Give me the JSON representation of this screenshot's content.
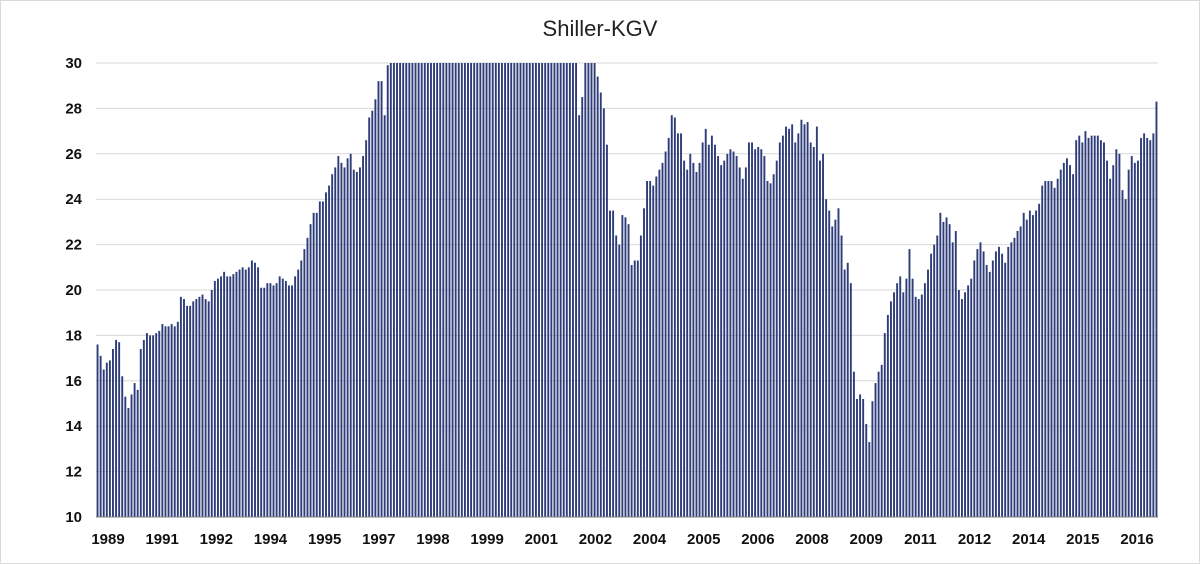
{
  "chart_data": {
    "type": "bar",
    "title": "Shiller-KGV",
    "xlabel": "",
    "ylabel": "",
    "ylim": [
      10,
      30
    ],
    "yticks": [
      "10",
      "12",
      "14",
      "16",
      "18",
      "20",
      "22",
      "24",
      "26",
      "28",
      "30"
    ],
    "xtick_labels": [
      "1989",
      "1991",
      "1992",
      "1994",
      "1995",
      "1997",
      "1998",
      "1999",
      "2001",
      "2002",
      "2004",
      "2005",
      "2006",
      "2008",
      "2009",
      "2011",
      "2012",
      "2014",
      "2015",
      "2016"
    ],
    "grid": true,
    "legend": "none",
    "bar_color": "#2e3d7a",
    "x_start": "1989-01",
    "x_end": "2016-03",
    "values": [
      17.6,
      17.1,
      16.5,
      16.8,
      16.9,
      17.4,
      17.8,
      17.7,
      16.2,
      15.3,
      14.8,
      15.4,
      15.9,
      15.6,
      17.4,
      17.8,
      18.1,
      18.0,
      18.0,
      18.1,
      18.2,
      18.5,
      18.4,
      18.4,
      18.5,
      18.4,
      18.6,
      19.7,
      19.6,
      19.3,
      19.3,
      19.5,
      19.6,
      19.7,
      19.8,
      19.6,
      19.5,
      20.0,
      20.4,
      20.5,
      20.6,
      20.8,
      20.6,
      20.6,
      20.7,
      20.8,
      20.9,
      21.0,
      20.9,
      21.0,
      21.3,
      21.2,
      21.0,
      20.1,
      20.1,
      20.3,
      20.3,
      20.2,
      20.3,
      20.6,
      20.5,
      20.4,
      20.2,
      20.2,
      20.6,
      20.9,
      21.3,
      21.8,
      22.3,
      22.9,
      23.4,
      23.4,
      23.9,
      23.9,
      24.3,
      24.6,
      25.1,
      25.4,
      25.9,
      25.6,
      25.4,
      25.8,
      26.0,
      25.3,
      25.2,
      25.4,
      25.9,
      26.6,
      27.6,
      27.9,
      28.4,
      29.2,
      29.2,
      27.7,
      29.9,
      30.0,
      30.0,
      30.0,
      30.0,
      30.0,
      30.0,
      30.0,
      30.0,
      30.0,
      30.0,
      30.0,
      30.0,
      30.0,
      30.0,
      30.0,
      30.0,
      30.0,
      30.0,
      30.0,
      30.0,
      30.0,
      30.0,
      30.0,
      30.0,
      30.0,
      30.0,
      30.0,
      30.0,
      30.0,
      30.0,
      30.0,
      30.0,
      30.0,
      30.0,
      30.0,
      30.0,
      30.0,
      30.0,
      30.0,
      30.0,
      30.0,
      30.0,
      30.0,
      30.0,
      30.0,
      30.0,
      30.0,
      30.0,
      30.0,
      30.0,
      30.0,
      30.0,
      30.0,
      30.0,
      30.0,
      30.0,
      30.0,
      30.0,
      30.0,
      30.0,
      30.0,
      27.7,
      28.5,
      30.0,
      30.0,
      30.0,
      30.0,
      29.4,
      28.7,
      28.0,
      26.4,
      23.5,
      23.5,
      22.4,
      22.0,
      23.3,
      23.2,
      22.9,
      21.1,
      21.3,
      21.3,
      22.4,
      23.6,
      24.8,
      24.8,
      24.6,
      25.0,
      25.3,
      25.6,
      26.1,
      26.7,
      27.7,
      27.6,
      26.9,
      26.9,
      25.7,
      25.3,
      26.0,
      25.6,
      25.2,
      25.6,
      26.5,
      27.1,
      26.4,
      26.8,
      26.4,
      25.9,
      25.5,
      25.7,
      26.0,
      26.2,
      26.1,
      25.9,
      25.4,
      24.9,
      25.4,
      26.5,
      26.5,
      26.2,
      26.3,
      26.2,
      25.9,
      24.8,
      24.7,
      25.1,
      25.7,
      26.5,
      26.8,
      27.2,
      27.1,
      27.3,
      26.5,
      26.9,
      27.5,
      27.3,
      27.4,
      26.5,
      26.3,
      27.2,
      25.7,
      26.0,
      24.0,
      23.5,
      22.8,
      23.1,
      23.6,
      22.4,
      20.9,
      21.2,
      20.3,
      16.4,
      15.2,
      15.4,
      15.2,
      14.1,
      13.3,
      15.1,
      15.9,
      16.4,
      16.7,
      18.1,
      18.9,
      19.5,
      19.9,
      20.3,
      20.6,
      19.9,
      20.5,
      21.8,
      20.5,
      19.7,
      19.6,
      19.8,
      20.3,
      20.9,
      21.6,
      22.0,
      22.4,
      23.4,
      23.0,
      23.2,
      22.9,
      22.1,
      22.6,
      20.0,
      19.6,
      19.9,
      20.2,
      20.5,
      21.3,
      21.8,
      22.1,
      21.7,
      21.1,
      20.8,
      21.3,
      21.7,
      21.9,
      21.6,
      21.2,
      21.9,
      22.1,
      22.3,
      22.6,
      22.8,
      23.4,
      23.1,
      23.5,
      23.3,
      23.5,
      23.8,
      24.6,
      24.8,
      24.8,
      24.8,
      24.5,
      24.9,
      25.3,
      25.6,
      25.8,
      25.5,
      25.1,
      26.6,
      26.8,
      26.5,
      27.0,
      26.7,
      26.8,
      26.8,
      26.8,
      26.6,
      26.5,
      25.7,
      24.9,
      25.5,
      26.2,
      26.0,
      24.4,
      24.0,
      25.3,
      25.9,
      25.6,
      25.7,
      26.7,
      26.9,
      26.7,
      26.6,
      26.9,
      28.3
    ]
  }
}
